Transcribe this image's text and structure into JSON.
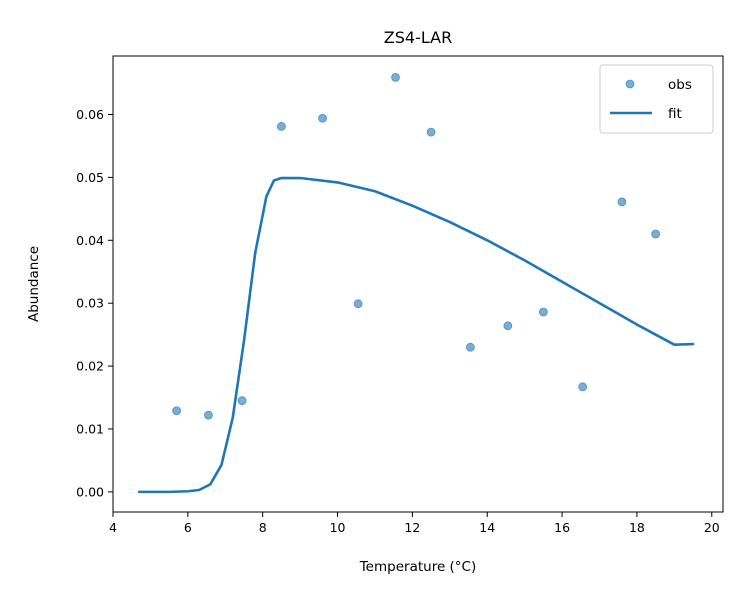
{
  "chart_data": {
    "type": "scatter",
    "title": "ZS4-LAR",
    "xlabel": "Temperature (°C)",
    "ylabel": "Abundance",
    "xlim": [
      4.0,
      20.3
    ],
    "ylim": [
      -0.0032,
      0.0693
    ],
    "xticks": [
      4,
      6,
      8,
      10,
      12,
      14,
      16,
      18,
      20
    ],
    "xtick_labels": [
      "4",
      "6",
      "8",
      "10",
      "12",
      "14",
      "16",
      "18",
      "20"
    ],
    "yticks": [
      0.0,
      0.01,
      0.02,
      0.03,
      0.04,
      0.05,
      0.06
    ],
    "ytick_labels": [
      "0.00",
      "0.01",
      "0.02",
      "0.03",
      "0.04",
      "0.05",
      "0.06"
    ],
    "grid": false,
    "legend_position": "top-right",
    "series": [
      {
        "name": "obs",
        "kind": "scatter",
        "color": "#1f77b4",
        "x": [
          5.7,
          6.55,
          7.45,
          8.5,
          9.6,
          10.55,
          11.55,
          12.5,
          13.55,
          14.55,
          15.5,
          16.55,
          17.6,
          18.5
        ],
        "y": [
          0.0129,
          0.0122,
          0.0145,
          0.0581,
          0.0594,
          0.0299,
          0.0659,
          0.0572,
          0.023,
          0.0264,
          0.0286,
          0.0167,
          0.0461,
          0.041
        ]
      },
      {
        "name": "fit",
        "kind": "line",
        "color": "#1f77b4",
        "x": [
          4.7,
          5.5,
          6.0,
          6.3,
          6.6,
          6.9,
          7.2,
          7.5,
          7.8,
          8.1,
          8.3,
          8.5,
          9.0,
          10.0,
          11.0,
          12.0,
          13.0,
          14.0,
          15.0,
          16.0,
          17.0,
          18.0,
          19.0,
          19.5
        ],
        "y": [
          0.0,
          0.0,
          0.0001,
          0.0003,
          0.0012,
          0.0043,
          0.0118,
          0.024,
          0.038,
          0.047,
          0.0495,
          0.0499,
          0.0499,
          0.0492,
          0.0478,
          0.0455,
          0.0429,
          0.04,
          0.0368,
          0.0334,
          0.03,
          0.0266,
          0.0234,
          0.0235
        ]
      }
    ]
  }
}
